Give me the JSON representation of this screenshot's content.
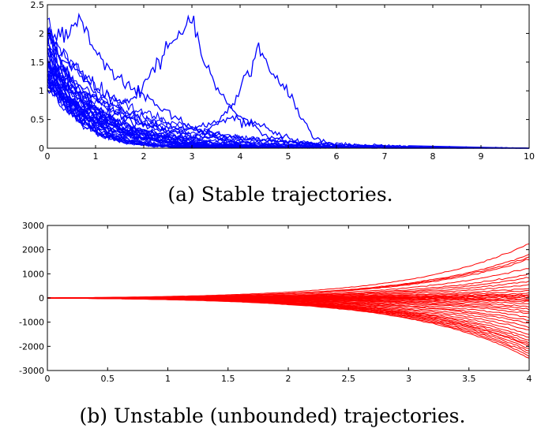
{
  "colors": {
    "stable": "#0000ff",
    "unstable": "#ff0000"
  },
  "captions": [
    "(a) Stable trajectories.",
    "(b) Unstable (unbounded) trajectories."
  ],
  "chart_data": [
    {
      "type": "line",
      "title": "",
      "caption": "(a) Stable trajectories.",
      "xlim": [
        0,
        10
      ],
      "ylim": [
        0,
        2.5
      ],
      "xticks": [
        0,
        1,
        2,
        3,
        4,
        5,
        6,
        7,
        8,
        9,
        10
      ],
      "yticks": [
        0,
        0.5,
        1,
        1.5,
        2,
        2.5
      ],
      "xtick_labels": [
        "0",
        "1",
        "2",
        "3",
        "4",
        "5",
        "6",
        "7",
        "8",
        "9",
        "10"
      ],
      "ytick_labels": [
        "0",
        "0.5",
        "1",
        "1.5",
        "2",
        "2.5"
      ],
      "color": "#0000ff",
      "n_series": 40,
      "series": [
        {
          "x": [
            0,
            0.4,
            0.7,
            1.0,
            1.3,
            1.6,
            2.0,
            2.3,
            2.6,
            2.8,
            2.95,
            3.05,
            3.2,
            3.5,
            3.8,
            4.2,
            4.6,
            5.0,
            5.5,
            6.0,
            7.0,
            10.0
          ],
          "y": [
            1.2,
            1.5,
            1.3,
            1.0,
            0.9,
            0.8,
            1.1,
            1.5,
            1.9,
            2.0,
            2.3,
            2.1,
            1.6,
            1.1,
            0.7,
            0.4,
            0.2,
            0.1,
            0.05,
            0.02,
            0.0,
            0.0
          ]
        },
        {
          "x": [
            0,
            0.5,
            1.0,
            1.5,
            2.0,
            2.5,
            3.0,
            3.5,
            3.9,
            4.2,
            4.4,
            4.6,
            4.9,
            5.2,
            5.5,
            6.0,
            7.0,
            10.0
          ],
          "y": [
            1.0,
            0.8,
            0.5,
            0.35,
            0.25,
            0.2,
            0.15,
            0.4,
            0.8,
            1.4,
            1.8,
            1.3,
            1.1,
            0.7,
            0.2,
            0.03,
            0.0,
            0.0
          ]
        },
        {
          "x": [
            0,
            0.3,
            0.7,
            1.0,
            1.5,
            2.0,
            3.0,
            4.0,
            10.0
          ],
          "y": [
            1.8,
            2.0,
            2.2,
            1.6,
            1.2,
            0.9,
            0.35,
            0.05,
            0.0
          ]
        },
        {
          "x": [
            0,
            0.4,
            0.8,
            1.2,
            1.8,
            2.5,
            3.2,
            3.8,
            4.3,
            4.8,
            5.3,
            6.0,
            10.0
          ],
          "y": [
            1.5,
            1.1,
            0.8,
            0.6,
            0.45,
            0.3,
            0.35,
            0.55,
            0.45,
            0.25,
            0.1,
            0.02,
            0.0
          ]
        }
      ],
      "envelope": {
        "x": [
          0,
          0.5,
          1,
          1.5,
          2,
          3,
          4,
          5,
          6,
          7
        ],
        "upper": [
          2.2,
          2.0,
          1.6,
          1.2,
          0.8,
          0.4,
          0.2,
          0.1,
          0.03,
          0.0
        ]
      }
    },
    {
      "type": "line",
      "title": "",
      "caption": "(b) Unstable (unbounded) trajectories.",
      "xlim": [
        0,
        4
      ],
      "ylim": [
        -3000,
        3000
      ],
      "xticks": [
        0,
        0.5,
        1,
        1.5,
        2,
        2.5,
        3,
        3.5,
        4
      ],
      "yticks": [
        -3000,
        -2000,
        -1000,
        0,
        1000,
        2000,
        3000
      ],
      "xtick_labels": [
        "0",
        "0.5",
        "1",
        "1.5",
        "2",
        "2.5",
        "3",
        "3.5",
        "4"
      ],
      "ytick_labels": [
        "-3000",
        "-2000",
        "-1000",
        "0",
        "1000",
        "2000",
        "3000"
      ],
      "color": "#ff0000",
      "n_series": 40,
      "final_values": [
        2250,
        1800,
        1700,
        1600,
        1250,
        1000,
        850,
        700,
        550,
        400,
        300,
        200,
        150,
        100,
        50,
        0,
        -50,
        -100,
        -150,
        -250,
        -350,
        -450,
        -550,
        -650,
        -800,
        -950,
        -1050,
        -1200,
        -1350,
        -1500,
        -1650,
        -1750,
        -1850,
        -1950,
        -2000,
        -2100,
        -2200,
        -2300,
        -2400,
        -2500
      ]
    }
  ]
}
